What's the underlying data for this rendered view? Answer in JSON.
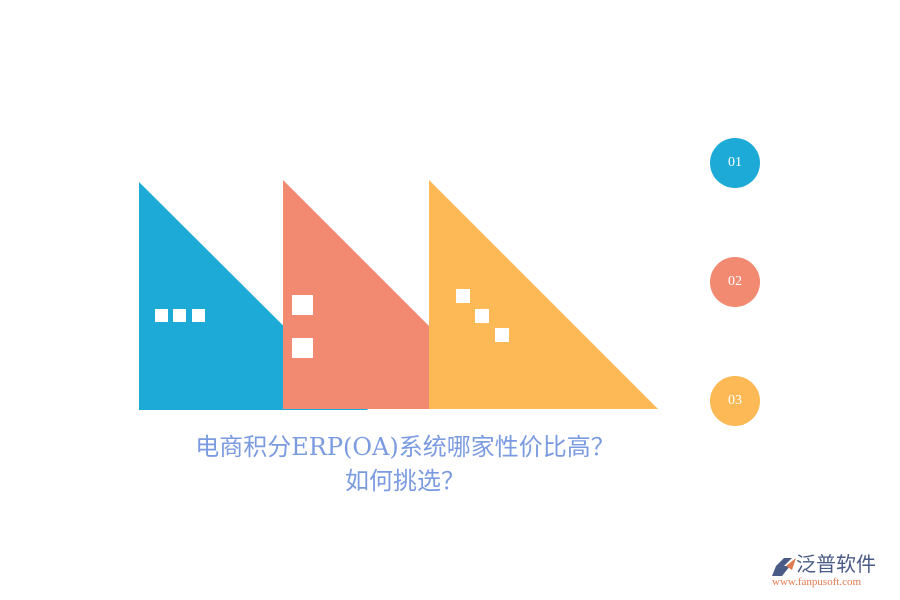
{
  "title": {
    "line1": "电商积分ERP(OA)系统哪家性价比高？",
    "line2": "如何挑选？"
  },
  "steps": [
    {
      "label": "01",
      "color": "#1eaad6"
    },
    {
      "label": "02",
      "color": "#f28a72"
    },
    {
      "label": "03",
      "color": "#fdb955"
    }
  ],
  "logo": {
    "name": "泛普软件",
    "url": "www.fanpusoft.com"
  }
}
